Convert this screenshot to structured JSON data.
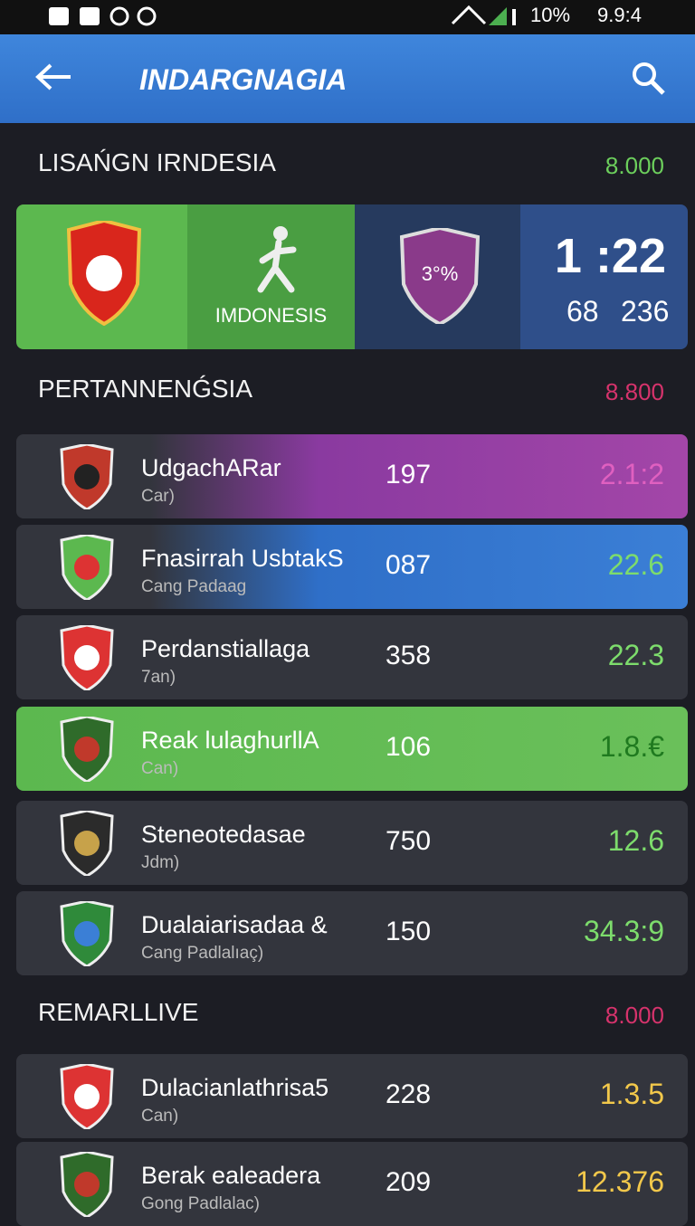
{
  "status_bar": {
    "battery": "10%",
    "time": "9.9:4"
  },
  "app_bar": {
    "title": "INDARGNAGIA"
  },
  "sections": [
    {
      "title": "LISAŃGN IRNDESIA",
      "value": "8.000",
      "featured": {
        "team_label": "IMDONESIS",
        "badge": "3°%",
        "score": "1 :22",
        "stats": [
          "68",
          "236"
        ]
      }
    },
    {
      "title": "PERTANNENǴSIA",
      "value": "8.800",
      "rows": [
        {
          "name": "UdgachARar",
          "sub": "Car)",
          "number": "197",
          "odds": "2.1:2"
        },
        {
          "name": "Fnasirrah UsbtakS",
          "sub": "Cang Padaag",
          "number": "087",
          "odds": "22.6"
        },
        {
          "name": "Perdanstiallaga",
          "sub": "7an)",
          "number": "358",
          "odds": "22.3"
        },
        {
          "name": "Reak lulaghurllA",
          "sub": "Can)",
          "number": "106",
          "odds": "1.8.€"
        },
        {
          "name": "Steneotedasae",
          "sub": "Jdm)",
          "number": "750",
          "odds": "12.6"
        },
        {
          "name": "Dualaiarisadaa &",
          "sub": "Cang Padlalıaç)",
          "number": "150",
          "odds": "34.3:9"
        }
      ]
    },
    {
      "title": "REMARLLIVE",
      "value": "8.000",
      "rows": [
        {
          "name": "Dulacianlathrisa5",
          "sub": "Can)",
          "number": "228",
          "odds": "1.3.5"
        },
        {
          "name": "Berak ealeadera",
          "sub": "Gong Padlalac)",
          "number": "209",
          "odds": "12.376"
        }
      ]
    }
  ]
}
